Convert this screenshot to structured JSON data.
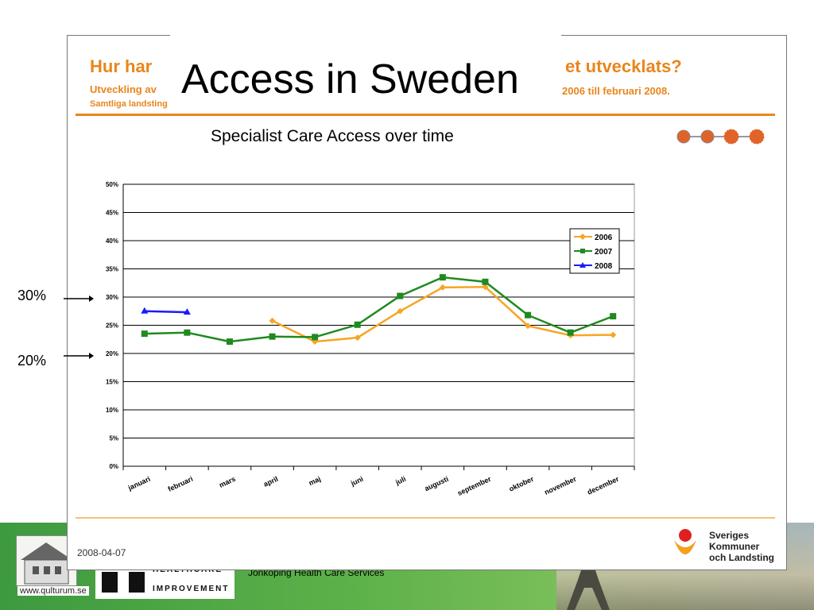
{
  "slide": {
    "title": "Access in Sweden",
    "subtitle": "Specialist Care Access over time",
    "date": "2008-04-07",
    "bg_title_left": "Hur har",
    "bg_title_right": "et utvecklats?",
    "bg_sub_left": "Utveckling av",
    "bg_sub_right": "2006 till februari 2008.",
    "bg_sub2": "Samtliga landsting",
    "annotations": [
      "30%",
      "20%"
    ]
  },
  "footer": {
    "qulturum": "www.qulturum.se",
    "hci_line1": "HEALTHCARE",
    "hci_line2": "IMPROVEMENT",
    "jonkoping": "Jönköping Health Care Services",
    "skl": [
      "Sveriges",
      "Kommuner",
      "och Landsting"
    ]
  },
  "chart_data": {
    "type": "line",
    "categories": [
      "januari",
      "februari",
      "mars",
      "april",
      "maj",
      "juni",
      "juli",
      "augusti",
      "september",
      "oktober",
      "november",
      "december"
    ],
    "yticks": [
      "0%",
      "5%",
      "10%",
      "15%",
      "20%",
      "25%",
      "30%",
      "35%",
      "40%",
      "45%",
      "50%"
    ],
    "ylim": [
      0,
      50
    ],
    "grid": true,
    "legend": "top-right",
    "series": [
      {
        "name": "2006",
        "color": "#f5a623",
        "marker": "diamond",
        "values": [
          null,
          null,
          null,
          25.8,
          22.1,
          22.8,
          27.5,
          31.7,
          31.8,
          24.9,
          23.2,
          23.3
        ]
      },
      {
        "name": "2007",
        "color": "#1f8a1f",
        "marker": "square",
        "values": [
          23.5,
          23.7,
          22.1,
          23.0,
          22.9,
          25.1,
          30.2,
          33.5,
          32.7,
          26.8,
          23.7,
          26.6
        ]
      },
      {
        "name": "2008",
        "color": "#1a1aff",
        "marker": "triangle",
        "values": [
          27.5,
          27.3,
          null,
          null,
          null,
          null,
          null,
          null,
          null,
          null,
          null,
          null
        ]
      }
    ]
  }
}
